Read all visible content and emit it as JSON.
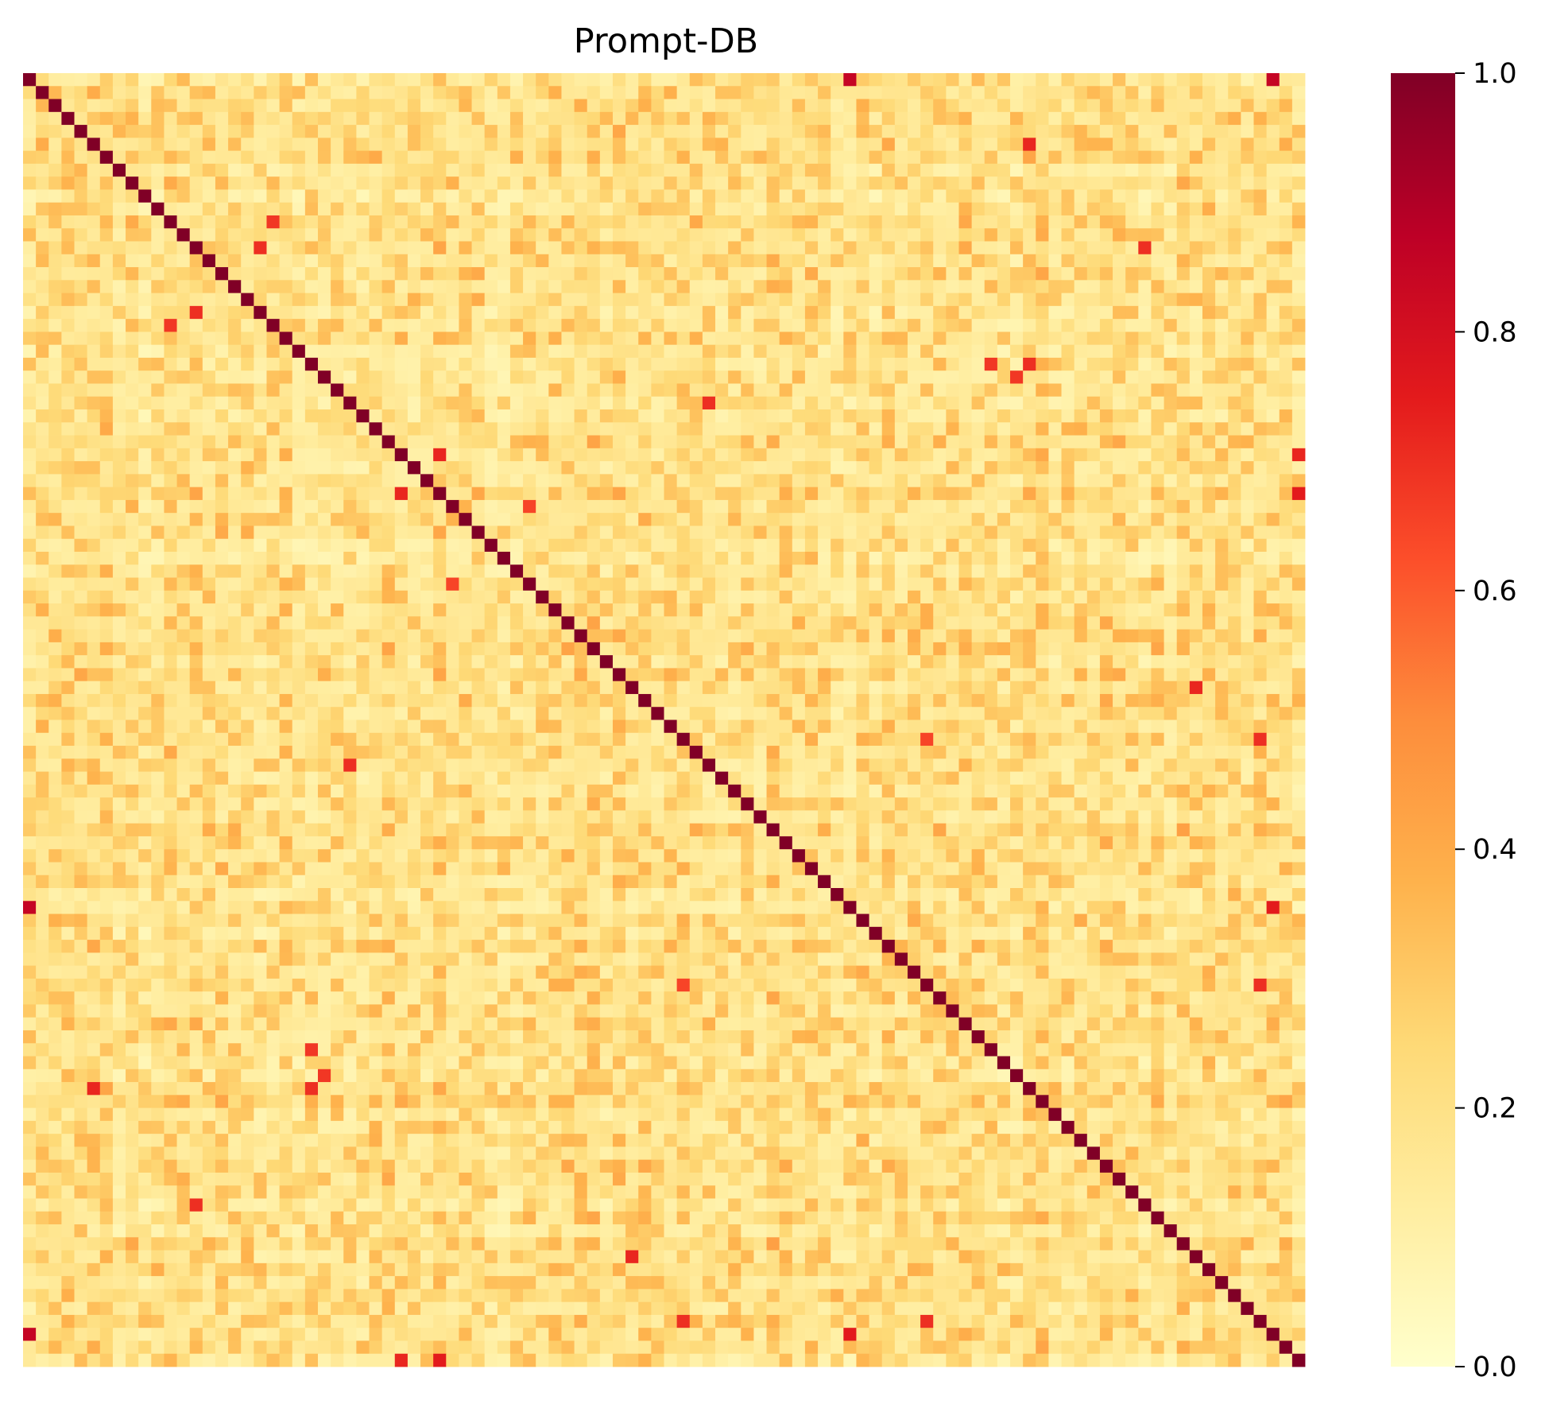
{
  "chart_data": {
    "type": "heatmap",
    "title": "Prompt-DB",
    "xlabel": "",
    "ylabel": "",
    "matrix_size": 100,
    "diagonal_value": 1.0,
    "off_diagonal_typical_range": [
      0.05,
      0.45
    ],
    "colormap": "YlOrRd",
    "colorbar": {
      "range": [
        0.0,
        1.0
      ],
      "ticks": [
        0.0,
        0.2,
        0.4,
        0.6,
        0.8,
        1.0
      ],
      "tick_labels": [
        "0.0",
        "0.2",
        "0.4",
        "0.6",
        "0.8",
        "1.0"
      ]
    },
    "notable_high_cells": [
      {
        "row": 0,
        "col": 64,
        "value": 0.85
      },
      {
        "row": 0,
        "col": 97,
        "value": 0.85
      },
      {
        "row": 5,
        "col": 78,
        "value": 0.72
      },
      {
        "row": 11,
        "col": 19,
        "value": 0.68
      },
      {
        "row": 13,
        "col": 18,
        "value": 0.7
      },
      {
        "row": 13,
        "col": 87,
        "value": 0.7
      },
      {
        "row": 18,
        "col": 13,
        "value": 0.7
      },
      {
        "row": 19,
        "col": 11,
        "value": 0.68
      },
      {
        "row": 22,
        "col": 75,
        "value": 0.68
      },
      {
        "row": 22,
        "col": 78,
        "value": 0.7
      },
      {
        "row": 25,
        "col": 53,
        "value": 0.7
      },
      {
        "row": 29,
        "col": 32,
        "value": 0.75
      },
      {
        "row": 29,
        "col": 99,
        "value": 0.72
      },
      {
        "row": 32,
        "col": 29,
        "value": 0.72
      },
      {
        "row": 32,
        "col": 99,
        "value": 0.75
      },
      {
        "row": 39,
        "col": 33,
        "value": 0.65
      },
      {
        "row": 47,
        "col": 91,
        "value": 0.72
      },
      {
        "row": 51,
        "col": 70,
        "value": 0.65
      },
      {
        "row": 51,
        "col": 96,
        "value": 0.7
      },
      {
        "row": 53,
        "col": 25,
        "value": 0.7
      },
      {
        "row": 64,
        "col": 0,
        "value": 0.85
      },
      {
        "row": 64,
        "col": 97,
        "value": 0.75
      },
      {
        "row": 70,
        "col": 51,
        "value": 0.65
      },
      {
        "row": 70,
        "col": 96,
        "value": 0.7
      },
      {
        "row": 77,
        "col": 23,
        "value": 0.68
      },
      {
        "row": 75,
        "col": 22,
        "value": 0.68
      },
      {
        "row": 78,
        "col": 5,
        "value": 0.72
      },
      {
        "row": 87,
        "col": 13,
        "value": 0.7
      },
      {
        "row": 91,
        "col": 47,
        "value": 0.72
      },
      {
        "row": 96,
        "col": 70,
        "value": 0.7
      },
      {
        "row": 97,
        "col": 0,
        "value": 0.85
      },
      {
        "row": 97,
        "col": 64,
        "value": 0.75
      },
      {
        "row": 99,
        "col": 29,
        "value": 0.72
      },
      {
        "row": 99,
        "col": 32,
        "value": 0.75
      }
    ]
  }
}
